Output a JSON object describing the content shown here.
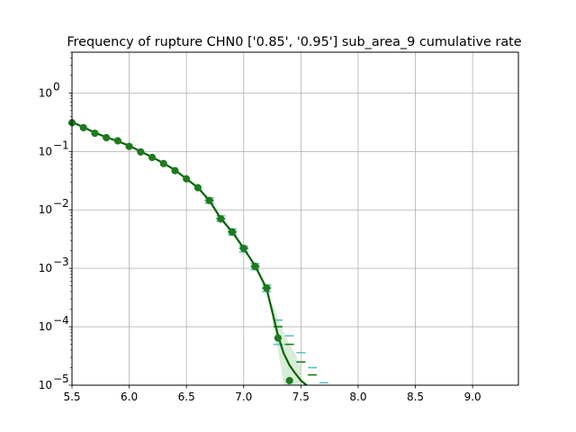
{
  "chart_data": {
    "type": "line",
    "title": "Frequency of rupture CHN0 ['0.85', '0.95'] sub_area_9 cumulative rate",
    "xlabel": "",
    "ylabel": "",
    "xlim": [
      5.5,
      9.4
    ],
    "ylim": [
      1e-05,
      5
    ],
    "yscale": "log",
    "grid": true,
    "x_ticks": [
      {
        "value": 5.5,
        "label": "5.5"
      },
      {
        "value": 6.0,
        "label": "6.0"
      },
      {
        "value": 6.5,
        "label": "6.5"
      },
      {
        "value": 7.0,
        "label": "7.0"
      },
      {
        "value": 7.5,
        "label": "7.5"
      },
      {
        "value": 8.0,
        "label": "8.0"
      },
      {
        "value": 8.5,
        "label": "8.5"
      },
      {
        "value": 9.0,
        "label": "9.0"
      }
    ],
    "y_ticks": [
      {
        "value": 1e-05,
        "label": "10",
        "exp": "−5"
      },
      {
        "value": 0.0001,
        "label": "10",
        "exp": "−4"
      },
      {
        "value": 0.001,
        "label": "10",
        "exp": "−3"
      },
      {
        "value": 0.01,
        "label": "10",
        "exp": "−2"
      },
      {
        "value": 0.1,
        "label": "10",
        "exp": "−1"
      },
      {
        "value": 1,
        "label": "10",
        "exp": "0"
      }
    ],
    "model_curve": {
      "color": "#006400",
      "x": [
        5.5,
        5.6,
        5.7,
        5.8,
        5.9,
        6.0,
        6.1,
        6.2,
        6.3,
        6.4,
        6.5,
        6.6,
        6.7,
        6.8,
        6.9,
        7.0,
        7.1,
        7.2,
        7.25,
        7.3,
        7.35,
        7.4,
        7.45,
        7.5,
        7.55
      ],
      "y": [
        0.32,
        0.26,
        0.21,
        0.175,
        0.15,
        0.125,
        0.1,
        0.08,
        0.063,
        0.048,
        0.034,
        0.024,
        0.0145,
        0.0071,
        0.0042,
        0.0022,
        0.0011,
        0.00045,
        0.00018,
        7e-05,
        3.5e-05,
        2.2e-05,
        1.6e-05,
        1.2e-05,
        1e-05
      ]
    },
    "uncertainty_band": {
      "color": "#c8e6c8",
      "x": [
        7.25,
        7.3,
        7.35,
        7.4,
        7.45,
        7.5
      ],
      "low": [
        0.00012,
        4e-05,
        1e-05,
        1e-05,
        1e-05,
        1e-05
      ],
      "high": [
        0.00025,
        0.00014,
        8e-05,
        5e-05,
        3.5e-05,
        2e-05
      ]
    },
    "observed_points": {
      "color": "#1e7a1e",
      "x": [
        5.5,
        5.6,
        5.7,
        5.8,
        5.9,
        6.0,
        6.1,
        6.2,
        6.3,
        6.4,
        6.5,
        6.6,
        6.7,
        6.8,
        6.9,
        7.0,
        7.1,
        7.2,
        7.3,
        7.4
      ],
      "y": [
        0.31,
        0.255,
        0.205,
        0.172,
        0.152,
        0.122,
        0.098,
        0.079,
        0.062,
        0.047,
        0.034,
        0.024,
        0.0145,
        0.007,
        0.0042,
        0.0022,
        0.00108,
        0.00046,
        6.4e-05,
        1.2e-05
      ]
    },
    "error_dashes": [
      {
        "color": "#5bc0c8",
        "x": [
          6.7,
          6.8,
          6.9,
          7.0,
          7.1,
          7.2,
          7.3,
          7.4,
          7.5,
          7.6,
          7.7
        ],
        "y": [
          0.016,
          0.0079,
          0.0047,
          0.0024,
          0.0012,
          0.00052,
          0.00013,
          7e-05,
          3.6e-05,
          2e-05,
          1.1e-05
        ]
      },
      {
        "color": "#1e7a1e",
        "x": [
          6.7,
          6.8,
          6.9,
          7.0,
          7.1,
          7.2,
          7.3,
          7.4,
          7.5,
          7.6
        ],
        "y": [
          0.0146,
          0.0071,
          0.0042,
          0.0022,
          0.00108,
          0.00046,
          0.0001,
          5e-05,
          2.5e-05,
          1.5e-05
        ]
      },
      {
        "color": "#5bc0c8",
        "x": [
          6.7,
          6.8,
          6.9,
          7.0,
          7.1,
          7.2,
          7.3
        ],
        "y": [
          0.013,
          0.0064,
          0.0037,
          0.0019,
          0.00095,
          0.0004,
          5e-05
        ]
      }
    ]
  }
}
